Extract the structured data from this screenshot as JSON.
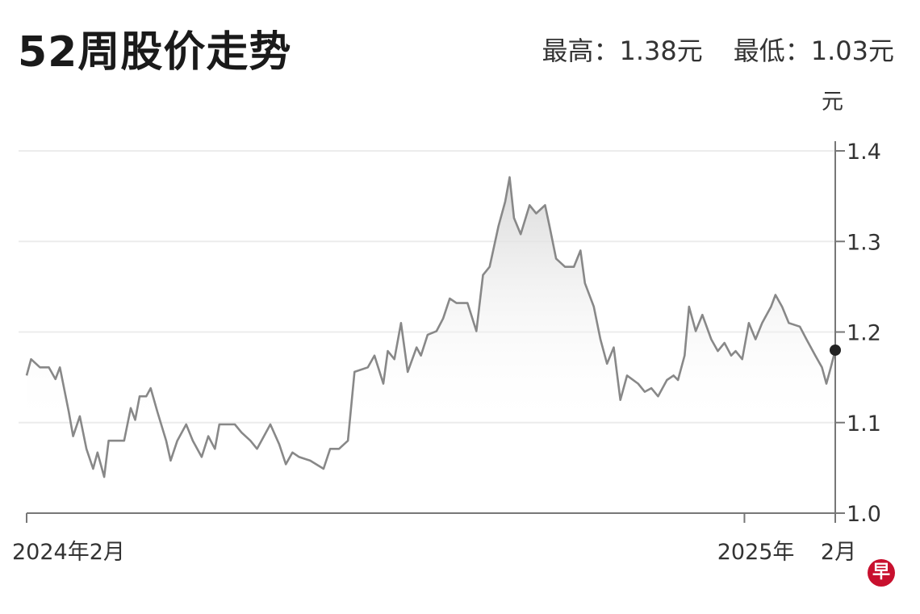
{
  "header": {
    "title": "52周股价走势",
    "high_label": "最高：1.38元",
    "low_label": "最低：1.03元"
  },
  "logo": {
    "text": "早",
    "color": "#c8102e"
  },
  "chart_data": {
    "type": "area",
    "title": "52周股价走势",
    "ylabel": "元",
    "ylim": [
      1.0,
      1.4
    ],
    "yticks": [
      "1.0",
      "1.1",
      "1.2",
      "1.3",
      "1.4"
    ],
    "xlim": [
      "2024-02-12",
      "2025-02-11"
    ],
    "xticks": [
      {
        "date": "2024-02-12",
        "label": "2024年2月"
      },
      {
        "date": "2025-01-01",
        "label": "2025年"
      },
      {
        "date": "2025-02-11",
        "label": "2月"
      }
    ],
    "grid": true,
    "line_color": "#888888",
    "last_point_marker_color": "#222222",
    "points": [
      [
        "2024-02-12",
        1.152
      ],
      [
        "2024-02-14",
        1.17
      ],
      [
        "2024-02-18",
        1.161
      ],
      [
        "2024-02-22",
        1.161
      ],
      [
        "2024-02-25",
        1.148
      ],
      [
        "2024-02-27",
        1.161
      ],
      [
        "2024-03-02",
        1.112
      ],
      [
        "2024-03-04",
        1.085
      ],
      [
        "2024-03-07",
        1.107
      ],
      [
        "2024-03-10",
        1.071
      ],
      [
        "2024-03-13",
        1.049
      ],
      [
        "2024-03-15",
        1.067
      ],
      [
        "2024-03-18",
        1.04
      ],
      [
        "2024-03-20",
        1.08
      ],
      [
        "2024-03-24",
        1.08
      ],
      [
        "2024-03-27",
        1.08
      ],
      [
        "2024-03-30",
        1.116
      ],
      [
        "2024-04-01",
        1.103
      ],
      [
        "2024-04-03",
        1.129
      ],
      [
        "2024-04-06",
        1.129
      ],
      [
        "2024-04-08",
        1.138
      ],
      [
        "2024-04-11",
        1.112
      ],
      [
        "2024-04-15",
        1.08
      ],
      [
        "2024-04-17",
        1.058
      ],
      [
        "2024-04-20",
        1.08
      ],
      [
        "2024-04-24",
        1.098
      ],
      [
        "2024-04-27",
        1.08
      ],
      [
        "2024-05-01",
        1.062
      ],
      [
        "2024-05-04",
        1.085
      ],
      [
        "2024-05-07",
        1.071
      ],
      [
        "2024-05-09",
        1.098
      ],
      [
        "2024-05-12",
        1.098
      ],
      [
        "2024-05-16",
        1.098
      ],
      [
        "2024-05-19",
        1.089
      ],
      [
        "2024-05-23",
        1.08
      ],
      [
        "2024-05-26",
        1.071
      ],
      [
        "2024-05-28",
        1.08
      ],
      [
        "2024-06-01",
        1.098
      ],
      [
        "2024-06-05",
        1.076
      ],
      [
        "2024-06-08",
        1.054
      ],
      [
        "2024-06-11",
        1.067
      ],
      [
        "2024-06-14",
        1.062
      ],
      [
        "2024-06-19",
        1.058
      ],
      [
        "2024-06-25",
        1.049
      ],
      [
        "2024-06-28",
        1.071
      ],
      [
        "2024-07-02",
        1.071
      ],
      [
        "2024-07-06",
        1.08
      ],
      [
        "2024-07-09",
        1.156
      ],
      [
        "2024-07-15",
        1.161
      ],
      [
        "2024-07-18",
        1.174
      ],
      [
        "2024-07-22",
        1.143
      ],
      [
        "2024-07-24",
        1.179
      ],
      [
        "2024-07-27",
        1.17
      ],
      [
        "2024-07-30",
        1.21
      ],
      [
        "2024-08-02",
        1.156
      ],
      [
        "2024-08-06",
        1.183
      ],
      [
        "2024-08-08",
        1.174
      ],
      [
        "2024-08-11",
        1.197
      ],
      [
        "2024-08-15",
        1.201
      ],
      [
        "2024-08-18",
        1.215
      ],
      [
        "2024-08-21",
        1.237
      ],
      [
        "2024-08-24",
        1.232
      ],
      [
        "2024-08-29",
        1.232
      ],
      [
        "2024-09-02",
        1.201
      ],
      [
        "2024-09-05",
        1.263
      ],
      [
        "2024-09-08",
        1.272
      ],
      [
        "2024-09-12",
        1.317
      ],
      [
        "2024-09-15",
        1.344
      ],
      [
        "2024-09-17",
        1.371
      ],
      [
        "2024-09-19",
        1.326
      ],
      [
        "2024-09-22",
        1.308
      ],
      [
        "2024-09-26",
        1.34
      ],
      [
        "2024-09-29",
        1.331
      ],
      [
        "2024-10-03",
        1.34
      ],
      [
        "2024-10-05",
        1.317
      ],
      [
        "2024-10-08",
        1.281
      ],
      [
        "2024-10-12",
        1.272
      ],
      [
        "2024-10-16",
        1.272
      ],
      [
        "2024-10-19",
        1.29
      ],
      [
        "2024-10-21",
        1.254
      ],
      [
        "2024-10-25",
        1.228
      ],
      [
        "2024-10-28",
        1.192
      ],
      [
        "2024-10-31",
        1.165
      ],
      [
        "2024-11-03",
        1.183
      ],
      [
        "2024-11-06",
        1.125
      ],
      [
        "2024-11-09",
        1.152
      ],
      [
        "2024-11-14",
        1.143
      ],
      [
        "2024-11-17",
        1.134
      ],
      [
        "2024-11-20",
        1.138
      ],
      [
        "2024-11-23",
        1.129
      ],
      [
        "2024-11-27",
        1.147
      ],
      [
        "2024-11-30",
        1.152
      ],
      [
        "2024-12-02",
        1.147
      ],
      [
        "2024-12-05",
        1.174
      ],
      [
        "2024-12-07",
        1.228
      ],
      [
        "2024-12-10",
        1.201
      ],
      [
        "2024-12-13",
        1.219
      ],
      [
        "2024-12-17",
        1.192
      ],
      [
        "2024-12-20",
        1.179
      ],
      [
        "2024-12-23",
        1.188
      ],
      [
        "2024-12-26",
        1.174
      ],
      [
        "2024-12-28",
        1.179
      ],
      [
        "2024-12-31",
        1.17
      ],
      [
        "2025-01-03",
        1.21
      ],
      [
        "2025-01-06",
        1.192
      ],
      [
        "2025-01-09",
        1.21
      ],
      [
        "2025-01-13",
        1.228
      ],
      [
        "2025-01-15",
        1.241
      ],
      [
        "2025-01-18",
        1.228
      ],
      [
        "2025-01-21",
        1.21
      ],
      [
        "2025-01-26",
        1.206
      ],
      [
        "2025-01-29",
        1.192
      ],
      [
        "2025-02-02",
        1.174
      ],
      [
        "2025-02-05",
        1.161
      ],
      [
        "2025-02-07",
        1.143
      ],
      [
        "2025-02-09",
        1.161
      ],
      [
        "2025-02-11",
        1.18
      ]
    ]
  }
}
